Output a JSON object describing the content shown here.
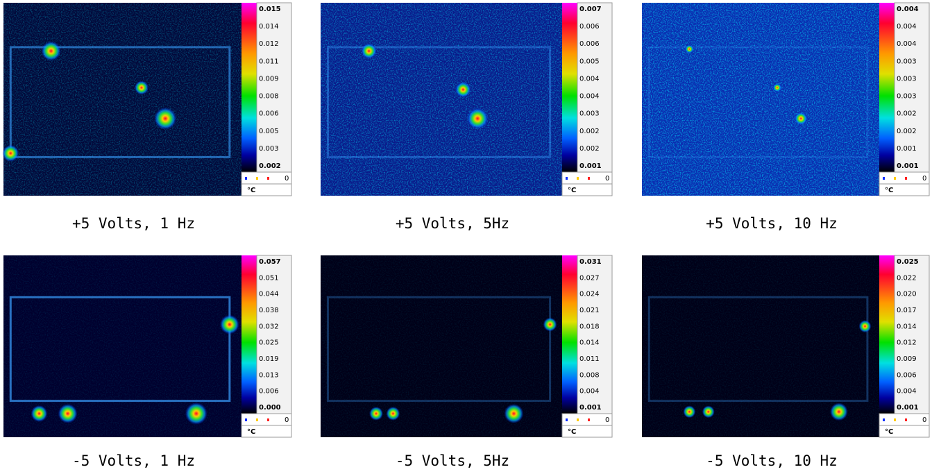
{
  "panels": [
    {
      "caption": "+5 Volts, 1 Hz",
      "scale": [
        "0.015",
        "0.014",
        "0.012",
        "0.011",
        "0.009",
        "0.008",
        "0.006",
        "0.005",
        "0.003",
        "0.002"
      ],
      "legend_value": "0",
      "unit": "°C"
    },
    {
      "caption": "+5 Volts, 5Hz",
      "scale": [
        "0.007",
        "0.006",
        "0.006",
        "0.005",
        "0.004",
        "0.004",
        "0.003",
        "0.002",
        "0.002",
        "0.001"
      ],
      "legend_value": "0",
      "unit": "°C"
    },
    {
      "caption": "+5 Volts, 10 Hz",
      "scale": [
        "0.004",
        "0.004",
        "0.004",
        "0.003",
        "0.003",
        "0.003",
        "0.002",
        "0.002",
        "0.001",
        "0.001"
      ],
      "legend_value": "0",
      "unit": "°C"
    },
    {
      "caption": "-5 Volts, 1 Hz",
      "scale": [
        "0.057",
        "0.051",
        "0.044",
        "0.038",
        "0.032",
        "0.025",
        "0.019",
        "0.013",
        "0.006",
        "0.000"
      ],
      "legend_value": "0",
      "unit": "°C"
    },
    {
      "caption": "-5 Volts, 5Hz",
      "scale": [
        "0.031",
        "0.027",
        "0.024",
        "0.021",
        "0.018",
        "0.014",
        "0.011",
        "0.008",
        "0.004",
        "0.001"
      ],
      "legend_value": "0",
      "unit": "°C"
    },
    {
      "caption": "-5 Volts, 10 Hz",
      "scale": [
        "0.025",
        "0.022",
        "0.020",
        "0.017",
        "0.014",
        "0.012",
        "0.009",
        "0.006",
        "0.004",
        "0.001"
      ],
      "legend_value": "0",
      "unit": "°C"
    }
  ]
}
